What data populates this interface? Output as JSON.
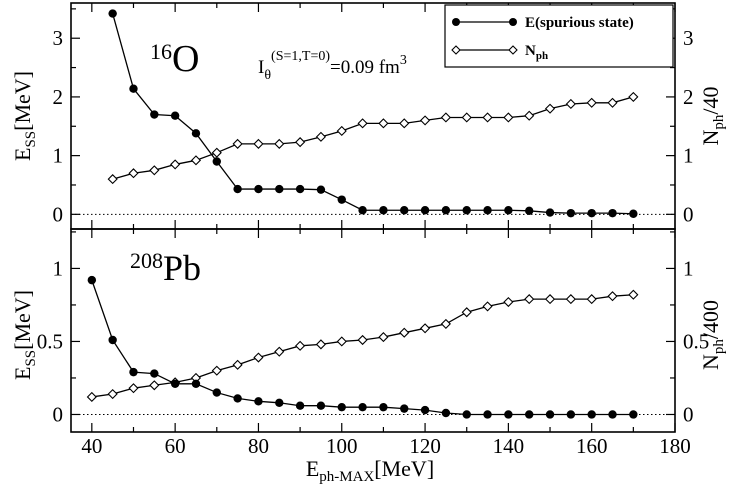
{
  "chart_data": [
    {
      "type": "line",
      "panel": "top",
      "annotation_nucleus_mass": "16",
      "annotation_nucleus_symbol": "O",
      "annotation_formula_main": "I",
      "annotation_formula_sub": "θ",
      "annotation_formula_sup": "(S=1,T=0)",
      "annotation_formula_tail": "=0.09 fm",
      "annotation_formula_exp": "3",
      "ylabel_main": "E",
      "ylabel_sub": "SS",
      "ylabel_tail": "[MeV]",
      "y2label_main": "N",
      "y2label_sub": "ph",
      "y2label_tail": "/40",
      "xlim": [
        35,
        180
      ],
      "ylim": [
        -0.25,
        3.6
      ],
      "y_ticks": [
        "0",
        "1",
        "2",
        "3"
      ],
      "y2_ticks": [
        "0",
        "1",
        "2",
        "3"
      ],
      "legend_position": "top-right",
      "series": [
        {
          "name": "E(spurious state)",
          "marker": "filled-circle",
          "x": [
            45,
            50,
            55,
            60,
            65,
            70,
            75,
            80,
            85,
            90,
            95,
            100,
            105,
            110,
            115,
            120,
            125,
            130,
            135,
            140,
            145,
            150,
            155,
            160,
            165,
            170
          ],
          "y": [
            3.42,
            2.14,
            1.7,
            1.68,
            1.38,
            0.9,
            0.43,
            0.43,
            0.43,
            0.43,
            0.42,
            0.25,
            0.07,
            0.07,
            0.07,
            0.07,
            0.07,
            0.07,
            0.07,
            0.07,
            0.06,
            0.03,
            0.02,
            0.02,
            0.02,
            0.01
          ]
        },
        {
          "name_main": "N",
          "name_sub": "ph",
          "marker": "open-diamond",
          "x": [
            45,
            50,
            55,
            60,
            65,
            70,
            75,
            80,
            85,
            90,
            95,
            100,
            105,
            110,
            115,
            120,
            125,
            130,
            135,
            140,
            145,
            150,
            155,
            160,
            165,
            170
          ],
          "y": [
            0.6,
            0.7,
            0.75,
            0.85,
            0.92,
            1.05,
            1.2,
            1.2,
            1.2,
            1.23,
            1.32,
            1.42,
            1.55,
            1.55,
            1.55,
            1.6,
            1.65,
            1.65,
            1.65,
            1.65,
            1.68,
            1.8,
            1.88,
            1.9,
            1.9,
            2.0
          ]
        }
      ]
    },
    {
      "type": "line",
      "panel": "bottom",
      "annotation_nucleus_mass": "208",
      "annotation_nucleus_symbol": "Pb",
      "ylabel_main": "E",
      "ylabel_sub": "SS",
      "ylabel_tail": "[MeV]",
      "y2label_main": "N",
      "y2label_sub": "ph",
      "y2label_tail": "/400",
      "xlabel_main": "E",
      "xlabel_sub": "ph-MAX",
      "xlabel_tail": "[MeV]",
      "xlim": [
        35,
        180
      ],
      "ylim": [
        -0.12,
        1.27
      ],
      "x_ticks": [
        "40",
        "60",
        "80",
        "100",
        "120",
        "140",
        "160",
        "180"
      ],
      "y_ticks": [
        "0",
        "0.5",
        "1"
      ],
      "y2_ticks": [
        "0",
        "0.5",
        "1"
      ],
      "series": [
        {
          "name": "E(spurious state)",
          "marker": "filled-circle",
          "x": [
            40,
            45,
            50,
            55,
            60,
            65,
            70,
            75,
            80,
            85,
            90,
            95,
            100,
            105,
            110,
            115,
            120,
            125,
            130,
            135,
            140,
            145,
            150,
            155,
            160,
            165,
            170
          ],
          "y": [
            0.92,
            0.51,
            0.29,
            0.28,
            0.21,
            0.21,
            0.15,
            0.11,
            0.09,
            0.08,
            0.06,
            0.06,
            0.05,
            0.05,
            0.05,
            0.04,
            0.03,
            0.01,
            0.0,
            0.0,
            0.0,
            0.0,
            0.0,
            0.0,
            0.0,
            0.0,
            0.0
          ]
        },
        {
          "name_main": "N",
          "name_sub": "ph",
          "marker": "open-diamond",
          "x": [
            40,
            45,
            50,
            55,
            60,
            65,
            70,
            75,
            80,
            85,
            90,
            95,
            100,
            105,
            110,
            115,
            120,
            125,
            130,
            135,
            140,
            145,
            150,
            155,
            160,
            165,
            170
          ],
          "y": [
            0.12,
            0.14,
            0.18,
            0.2,
            0.22,
            0.25,
            0.3,
            0.34,
            0.39,
            0.43,
            0.47,
            0.48,
            0.5,
            0.51,
            0.53,
            0.56,
            0.59,
            0.62,
            0.7,
            0.74,
            0.77,
            0.79,
            0.79,
            0.79,
            0.79,
            0.81,
            0.82
          ]
        }
      ]
    }
  ]
}
